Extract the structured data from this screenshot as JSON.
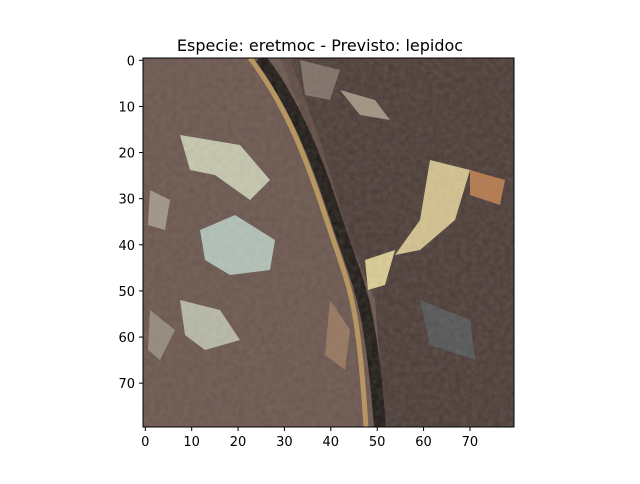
{
  "figure": {
    "title": "Especie: eretmoc - Previsto: lepidoc",
    "image_description": "satellite-like texture; diagonal dark crack with pale highlights",
    "x_ticks": [
      "0",
      "10",
      "20",
      "30",
      "40",
      "50",
      "60",
      "70"
    ],
    "y_ticks": [
      "0",
      "10",
      "20",
      "30",
      "40",
      "50",
      "60",
      "70"
    ],
    "x_range": [
      -0.5,
      79.5
    ],
    "y_range": [
      -0.5,
      79.5
    ]
  },
  "colors": {
    "axis": "#000000",
    "background": "#ffffff"
  }
}
